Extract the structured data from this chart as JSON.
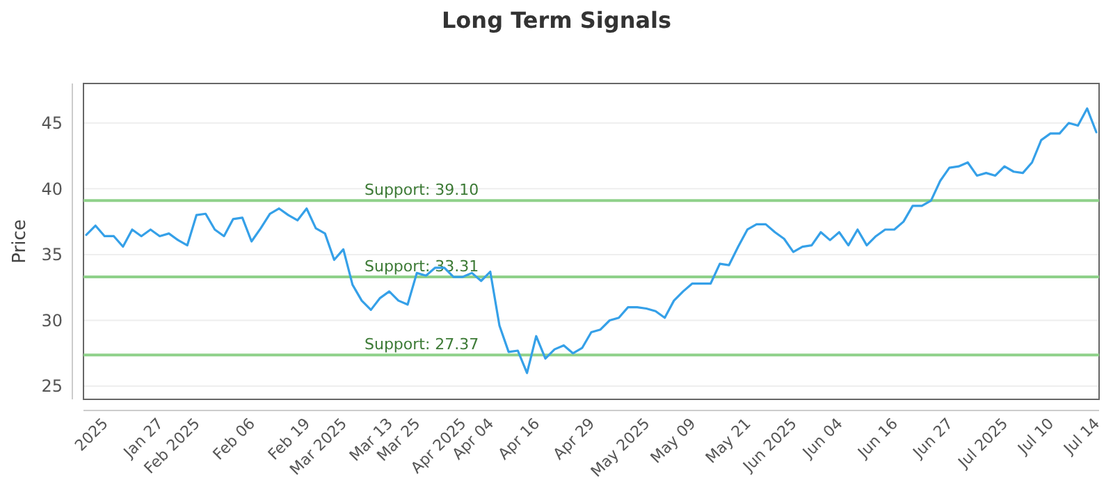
{
  "chart_data": {
    "type": "line",
    "title": "Long Term Signals",
    "ylabel": "Price",
    "categories": [
      null,
      null,
      "2025",
      null,
      null,
      null,
      null,
      null,
      "Jan 27",
      null,
      null,
      null,
      "Feb 2025",
      null,
      null,
      null,
      null,
      null,
      "Feb 06",
      null,
      null,
      null,
      null,
      null,
      "Feb 19",
      null,
      null,
      null,
      "Mar 2025",
      null,
      null,
      null,
      null,
      "Mar 13",
      null,
      null,
      "Mar 25",
      null,
      null,
      null,
      null,
      "Apr 2025",
      null,
      null,
      "Apr 04",
      null,
      null,
      null,
      null,
      "Apr 16",
      null,
      null,
      null,
      null,
      null,
      "Apr 29",
      null,
      null,
      null,
      null,
      null,
      "May 2025",
      null,
      null,
      null,
      null,
      "May 09",
      null,
      null,
      null,
      null,
      null,
      "May 21",
      null,
      null,
      null,
      null,
      "Jun 2025",
      null,
      null,
      null,
      null,
      "Jun 04",
      null,
      null,
      null,
      null,
      null,
      "Jun 16",
      null,
      null,
      null,
      null,
      null,
      "Jun 27",
      null,
      null,
      null,
      null,
      null,
      "Jul 2025",
      null,
      null,
      null,
      null,
      "Jul 10",
      null,
      null,
      null,
      null,
      "Jul 14"
    ],
    "series": [
      {
        "color": "#35a0e8",
        "values": [
          36.5,
          37.2,
          36.4,
          36.4,
          35.6,
          36.9,
          36.4,
          36.9,
          36.4,
          36.6,
          36.1,
          35.7,
          38.0,
          38.1,
          36.9,
          36.4,
          37.7,
          37.8,
          36.0,
          37.0,
          38.1,
          38.5,
          38.0,
          37.6,
          38.5,
          37.0,
          36.6,
          34.6,
          35.4,
          32.7,
          31.5,
          30.8,
          31.7,
          32.2,
          31.5,
          31.2,
          33.6,
          33.4,
          34.0,
          34.0,
          33.3,
          33.3,
          33.6,
          33.0,
          33.7,
          29.6,
          27.6,
          27.7,
          26.0,
          28.8,
          27.1,
          27.8,
          28.1,
          27.5,
          27.9,
          29.1,
          29.3,
          30.0,
          30.2,
          31.0,
          31.0,
          30.9,
          30.7,
          30.2,
          31.5,
          32.2,
          32.8,
          32.8,
          32.8,
          34.3,
          34.2,
          35.6,
          36.9,
          37.3,
          37.3,
          36.7,
          36.2,
          35.2,
          35.6,
          35.7,
          36.7,
          36.1,
          36.7,
          35.7,
          36.9,
          35.7,
          36.4,
          36.9,
          36.9,
          37.5,
          38.7,
          38.7,
          39.1,
          40.6,
          41.6,
          41.7,
          42.0,
          41.0,
          41.2,
          41.0,
          41.7,
          41.3,
          41.2,
          42.0,
          43.7,
          44.2,
          44.2,
          45.0,
          44.8,
          46.1,
          44.3
        ]
      }
    ],
    "ylim": [
      24,
      48
    ],
    "yticks": [
      25,
      30,
      35,
      40,
      45
    ],
    "grid": "y",
    "marker": "none",
    "line_style": "solid",
    "ref_lines": [
      {
        "axis": "y",
        "value": 39.1,
        "label": "Support: 39.10",
        "color": "#8fd18a"
      },
      {
        "axis": "y",
        "value": 33.31,
        "label": "Support: 33.31",
        "color": "#8fd18a"
      },
      {
        "axis": "y",
        "value": 27.37,
        "label": "Support: 27.37",
        "color": "#8fd18a"
      }
    ]
  }
}
